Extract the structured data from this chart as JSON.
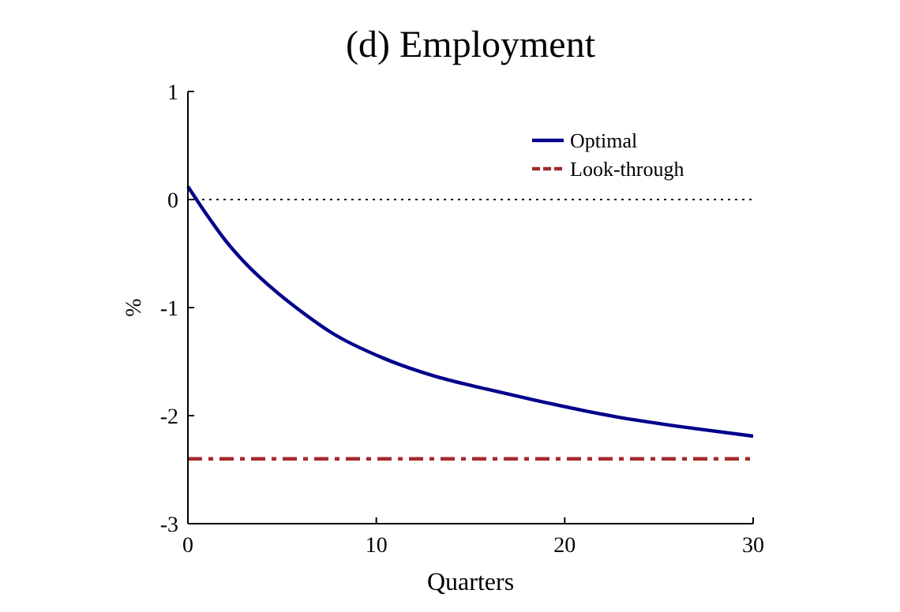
{
  "chart_data": {
    "type": "line",
    "title": "(d) Employment",
    "xlabel": "Quarters",
    "ylabel": "%",
    "x": [
      0,
      1,
      2,
      3,
      4.8,
      6.2,
      7.6,
      10.4,
      13.2,
      16,
      18.5,
      22.7,
      26.9,
      30
    ],
    "series": [
      {
        "name": "Optimal",
        "color": "#00008b",
        "values": [
          0.12,
          -0.14,
          -0.38,
          -0.58,
          -0.87,
          -1.06,
          -1.23,
          -1.47,
          -1.64,
          -1.76,
          -1.86,
          -2.01,
          -2.12,
          -2.19
        ],
        "line_style": "solid"
      },
      {
        "name": "Look-through",
        "color": "#a52a2a",
        "values": [
          -2.4,
          -2.4,
          -2.4,
          -2.4,
          -2.4,
          -2.4,
          -2.4,
          -2.4,
          -2.4,
          -2.4,
          -2.4,
          -2.4,
          -2.4,
          -2.4
        ],
        "line_style": "dashed"
      }
    ],
    "ref_lines": [
      {
        "axis": "y",
        "value": 0,
        "label": null,
        "color": "#000000",
        "line_style": "dotted"
      }
    ],
    "xlim": [
      0,
      30
    ],
    "xticks": [
      0,
      10,
      20,
      30
    ],
    "ylim": [
      -3,
      1
    ],
    "yticks": [
      -3,
      -2,
      -1,
      0,
      1
    ],
    "grid": false,
    "legend": "top right",
    "marker": "none"
  }
}
